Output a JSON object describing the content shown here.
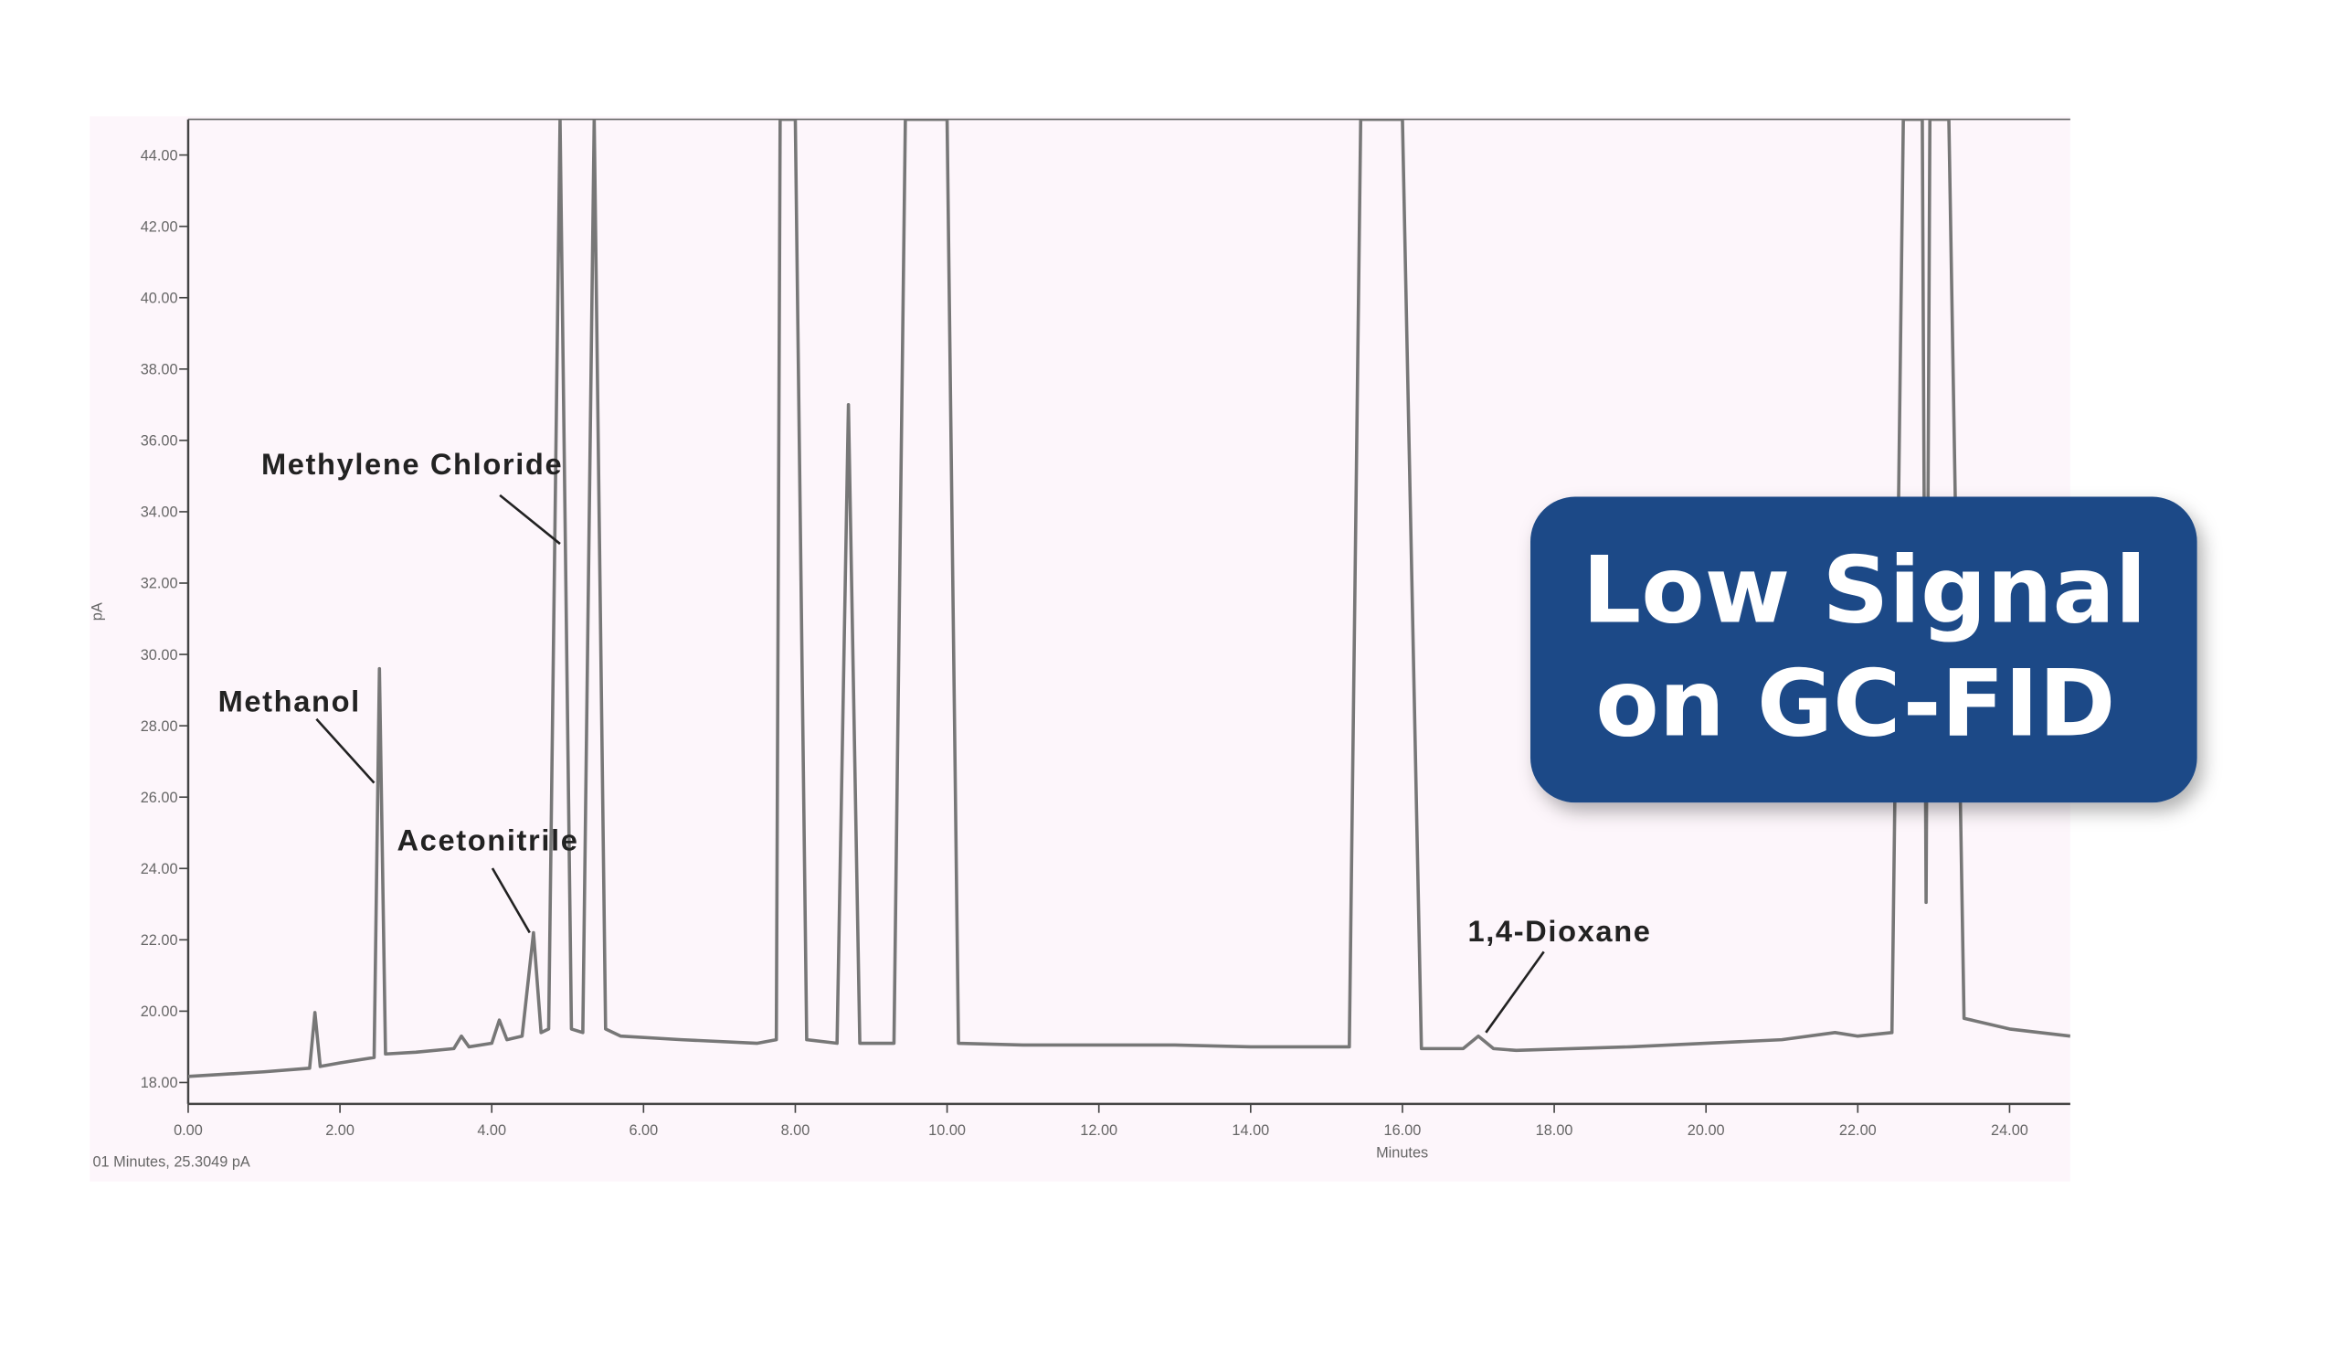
{
  "chart_data": {
    "type": "line",
    "x_label": "Minutes",
    "y_label": "pA",
    "status_text": "01 Minutes, 25.3049 pA",
    "color": "#777777",
    "x": [
      0,
      1.0,
      1.6,
      1.67,
      1.74,
      2.0,
      2.45,
      2.52,
      2.6,
      3.0,
      3.5,
      3.6,
      3.7,
      4.0,
      4.1,
      4.2,
      4.4,
      4.55,
      4.65,
      4.75,
      4.9,
      5.05,
      5.2,
      5.35,
      5.5,
      5.7,
      6.5,
      7.5,
      7.75,
      7.8,
      8.0,
      8.15,
      8.55,
      8.7,
      8.85,
      9.3,
      9.45,
      10.0,
      10.15,
      11,
      12,
      13,
      14,
      15.3,
      15.45,
      16.0,
      16.25,
      16.8,
      17.0,
      17.2,
      17.5,
      19,
      21,
      21.7,
      22.0,
      22.45,
      22.6,
      22.85,
      22.9,
      22.95,
      23.2,
      23.4,
      24,
      24.8
    ],
    "values": [
      18.17,
      18.3,
      18.4,
      19.96,
      18.45,
      18.55,
      18.7,
      29.6,
      18.8,
      18.85,
      18.95,
      19.3,
      19.0,
      19.1,
      19.75,
      19.2,
      19.3,
      22.2,
      19.4,
      19.5,
      45,
      19.5,
      19.4,
      45,
      19.5,
      19.3,
      19.2,
      19.1,
      19.2,
      45,
      45,
      19.2,
      19.1,
      37.0,
      19.1,
      19.1,
      45,
      45,
      19.1,
      19.05,
      19.05,
      19.05,
      19.0,
      19.0,
      45,
      45,
      18.95,
      18.95,
      19.3,
      18.95,
      18.9,
      19.0,
      19.2,
      19.4,
      19.3,
      19.4,
      45,
      45,
      23.05,
      45,
      45,
      19.8,
      19.5,
      19.3
    ],
    "xlim": [
      0,
      24.8
    ],
    "ylim": [
      17.4,
      45
    ],
    "xticks": [
      {
        "value": 0,
        "label": "0.00"
      },
      {
        "value": 2,
        "label": "2.00"
      },
      {
        "value": 4,
        "label": "4.00"
      },
      {
        "value": 6,
        "label": "6.00"
      },
      {
        "value": 8,
        "label": "8.00"
      },
      {
        "value": 10,
        "label": "10.00"
      },
      {
        "value": 12,
        "label": "12.00"
      },
      {
        "value": 14,
        "label": "14.00"
      },
      {
        "value": 16,
        "label": "16.00"
      },
      {
        "value": 18,
        "label": "18.00"
      },
      {
        "value": 20,
        "label": "20.00"
      },
      {
        "value": 22,
        "label": "22.00"
      },
      {
        "value": 24,
        "label": "24.00"
      }
    ],
    "yticks": [
      {
        "value": 18,
        "label": "18.00"
      },
      {
        "value": 20,
        "label": "20.00"
      },
      {
        "value": 22,
        "label": "22.00"
      },
      {
        "value": 24,
        "label": "24.00"
      },
      {
        "value": 26,
        "label": "26.00"
      },
      {
        "value": 28,
        "label": "28.00"
      },
      {
        "value": 30,
        "label": "30.00"
      },
      {
        "value": 32,
        "label": "32.00"
      },
      {
        "value": 34,
        "label": "34.00"
      },
      {
        "value": 36,
        "label": "36.00"
      },
      {
        "value": 38,
        "label": "38.00"
      },
      {
        "value": 40,
        "label": "40.00"
      },
      {
        "value": 42,
        "label": "42.00"
      },
      {
        "value": 44,
        "label": "44.00"
      }
    ],
    "annotations": [
      {
        "text": "Methylene Chloride",
        "x": 4.9,
        "y": 33.1
      },
      {
        "text": "Methanol",
        "x": 2.45,
        "y": 26.4
      },
      {
        "text": "Acetonitrile",
        "x": 4.5,
        "y": 22.2
      },
      {
        "text": "1,4-Dioxane",
        "x": 17.1,
        "y": 19.4
      }
    ]
  },
  "badge": {
    "lines": [
      "Low Signal",
      "on GC-FID"
    ]
  }
}
